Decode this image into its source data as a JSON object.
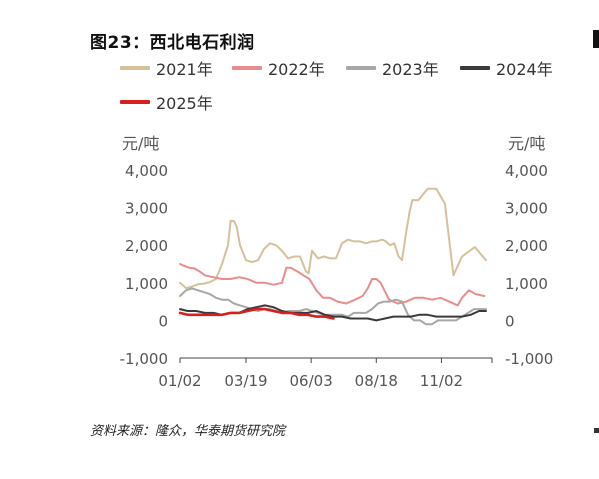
{
  "title": "图23：西北电石利润",
  "source": "资料来源：隆众，华泰期货研究院",
  "chart_data": {
    "type": "line",
    "y_unit_left": "元/吨",
    "y_unit_right": "元/吨",
    "ylim": [
      -1000,
      4000
    ],
    "yticks": [
      "4,000",
      "3,000",
      "2,000",
      "1,000",
      "0",
      "-1,000"
    ],
    "ytick_values": [
      4000,
      3000,
      2000,
      1000,
      0,
      -1000
    ],
    "xticks": [
      "01/02",
      "03/19",
      "06/03",
      "08/18",
      "11/02"
    ],
    "x_domain_days": [
      1,
      365
    ],
    "xtick_days": [
      1,
      78,
      154,
      230,
      306
    ],
    "legend_position": "top",
    "series": [
      {
        "name": "2021年",
        "color": "#d6c09b",
        "x": [
          1,
          8,
          15,
          22,
          29,
          36,
          43,
          50,
          57,
          60,
          64,
          67,
          71,
          78,
          85,
          92,
          99,
          106,
          113,
          120,
          127,
          134,
          141,
          148,
          151,
          155,
          162,
          169,
          176,
          183,
          190,
          197,
          204,
          211,
          218,
          225,
          230,
          237,
          241,
          246,
          251,
          256,
          260,
          262,
          266,
          269,
          272,
          275,
          279,
          290,
          300,
          310,
          320,
          330,
          345,
          358
        ],
        "values": [
          1000,
          860,
          900,
          960,
          980,
          1020,
          1100,
          1500,
          2000,
          2650,
          2640,
          2500,
          2000,
          1600,
          1550,
          1600,
          1900,
          2050,
          2000,
          1850,
          1650,
          1700,
          1700,
          1300,
          1250,
          1850,
          1650,
          1700,
          1650,
          1650,
          2050,
          2150,
          2100,
          2100,
          2050,
          2100,
          2100,
          2150,
          2100,
          2000,
          2050,
          1700,
          1600,
          1900,
          2500,
          2900,
          3200,
          3200,
          3200,
          3500,
          3500,
          3100,
          1200,
          1700,
          1950,
          1600
        ]
      },
      {
        "name": "2022年",
        "color": "#e98c8c",
        "x": [
          1,
          6,
          12,
          18,
          24,
          30,
          40,
          50,
          60,
          70,
          80,
          90,
          100,
          110,
          120,
          125,
          130,
          138,
          145,
          152,
          160,
          168,
          176,
          185,
          195,
          205,
          214,
          220,
          225,
          230,
          235,
          245,
          255,
          265,
          275,
          285,
          295,
          305,
          315,
          325,
          330,
          338,
          346,
          356
        ],
        "values": [
          1500,
          1450,
          1400,
          1380,
          1300,
          1200,
          1150,
          1100,
          1100,
          1150,
          1100,
          1000,
          1000,
          950,
          1000,
          1400,
          1400,
          1300,
          1200,
          1100,
          800,
          600,
          600,
          500,
          450,
          550,
          650,
          850,
          1100,
          1100,
          1000,
          550,
          450,
          500,
          600,
          600,
          550,
          600,
          500,
          400,
          600,
          800,
          700,
          650
        ]
      },
      {
        "name": "2023年",
        "color": "#a7a7a7",
        "x": [
          1,
          8,
          15,
          22,
          29,
          36,
          43,
          50,
          57,
          64,
          71,
          78,
          85,
          92,
          99,
          106,
          113,
          120,
          127,
          134,
          141,
          148,
          155,
          162,
          169,
          176,
          183,
          190,
          197,
          204,
          211,
          218,
          225,
          232,
          239,
          246,
          253,
          260,
          267,
          274,
          281,
          288,
          295,
          302,
          309,
          316,
          323,
          330,
          337,
          344,
          358
        ],
        "values": [
          650,
          800,
          850,
          800,
          750,
          700,
          600,
          550,
          550,
          450,
          400,
          350,
          300,
          250,
          300,
          300,
          250,
          200,
          250,
          250,
          250,
          300,
          250,
          200,
          150,
          150,
          150,
          150,
          100,
          200,
          200,
          200,
          300,
          450,
          500,
          500,
          550,
          500,
          150,
          0,
          0,
          -100,
          -100,
          0,
          0,
          0,
          0,
          100,
          200,
          300,
          300
        ]
      },
      {
        "name": "2024年",
        "color": "#3a3a3a",
        "x": [
          1,
          10,
          20,
          30,
          40,
          50,
          60,
          70,
          80,
          90,
          100,
          110,
          120,
          130,
          140,
          150,
          160,
          170,
          180,
          190,
          200,
          210,
          220,
          230,
          240,
          250,
          260,
          270,
          280,
          290,
          300,
          310,
          320,
          330,
          340,
          350,
          358
        ],
        "values": [
          300,
          250,
          250,
          200,
          200,
          150,
          200,
          200,
          300,
          350,
          400,
          350,
          250,
          200,
          200,
          200,
          250,
          150,
          100,
          100,
          50,
          50,
          50,
          0,
          50,
          100,
          100,
          100,
          150,
          150,
          100,
          100,
          100,
          100,
          150,
          250,
          250
        ]
      },
      {
        "name": "2025年",
        "color": "#d7201e",
        "x": [
          1,
          10,
          20,
          30,
          40,
          50,
          60,
          70,
          80,
          90,
          100,
          110,
          120,
          130,
          140,
          150,
          160,
          170,
          180
        ],
        "values": [
          200,
          150,
          150,
          150,
          150,
          150,
          200,
          200,
          250,
          300,
          300,
          250,
          200,
          200,
          150,
          150,
          100,
          100,
          50
        ]
      }
    ]
  }
}
